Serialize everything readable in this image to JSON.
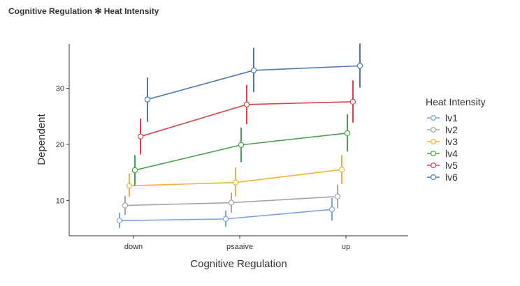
{
  "title": "Cognitive Regulation ✻ Heat Intensity",
  "chart_data": {
    "type": "line",
    "title": "Cognitive Regulation ✻ Heat Intensity",
    "xlabel": "Cognitive Regulation",
    "ylabel": "Dependent",
    "categories": [
      "down",
      "psaaive",
      "up"
    ],
    "yticks": [
      10,
      20,
      30
    ],
    "ylim": [
      3.7,
      37.9
    ],
    "grid": false,
    "legend_title": "Heat Intensity",
    "legend_position": "right",
    "series": [
      {
        "name": "lv1",
        "color": "#7ba3e0",
        "values": [
          6.4,
          6.7,
          8.4
        ],
        "lower": [
          5.1,
          5.3,
          6.4
        ],
        "upper": [
          7.8,
          8.2,
          10.4
        ]
      },
      {
        "name": "lv2",
        "color": "#a6a6a6",
        "values": [
          9.1,
          9.6,
          10.7
        ],
        "lower": [
          7.4,
          7.8,
          8.6
        ],
        "upper": [
          10.8,
          11.4,
          12.8
        ]
      },
      {
        "name": "lv3",
        "color": "#f0b13c",
        "values": [
          12.6,
          13.2,
          15.5
        ],
        "lower": [
          10.6,
          10.7,
          12.9
        ],
        "upper": [
          14.8,
          15.9,
          18.1
        ]
      },
      {
        "name": "lv4",
        "color": "#4aa14d",
        "values": [
          15.4,
          19.9,
          22.0
        ],
        "lower": [
          12.6,
          16.8,
          18.7
        ],
        "upper": [
          18.1,
          23.0,
          25.4
        ]
      },
      {
        "name": "lv5",
        "color": "#d64545",
        "values": [
          21.4,
          27.1,
          27.6
        ],
        "lower": [
          18.2,
          23.6,
          23.9
        ],
        "upper": [
          24.6,
          30.6,
          31.4
        ]
      },
      {
        "name": "lv6",
        "color": "#4f79ad",
        "values": [
          28.0,
          33.2,
          34.0
        ],
        "lower": [
          24.0,
          29.3,
          30.1
        ],
        "upper": [
          31.9,
          37.2,
          38.0
        ]
      }
    ]
  }
}
